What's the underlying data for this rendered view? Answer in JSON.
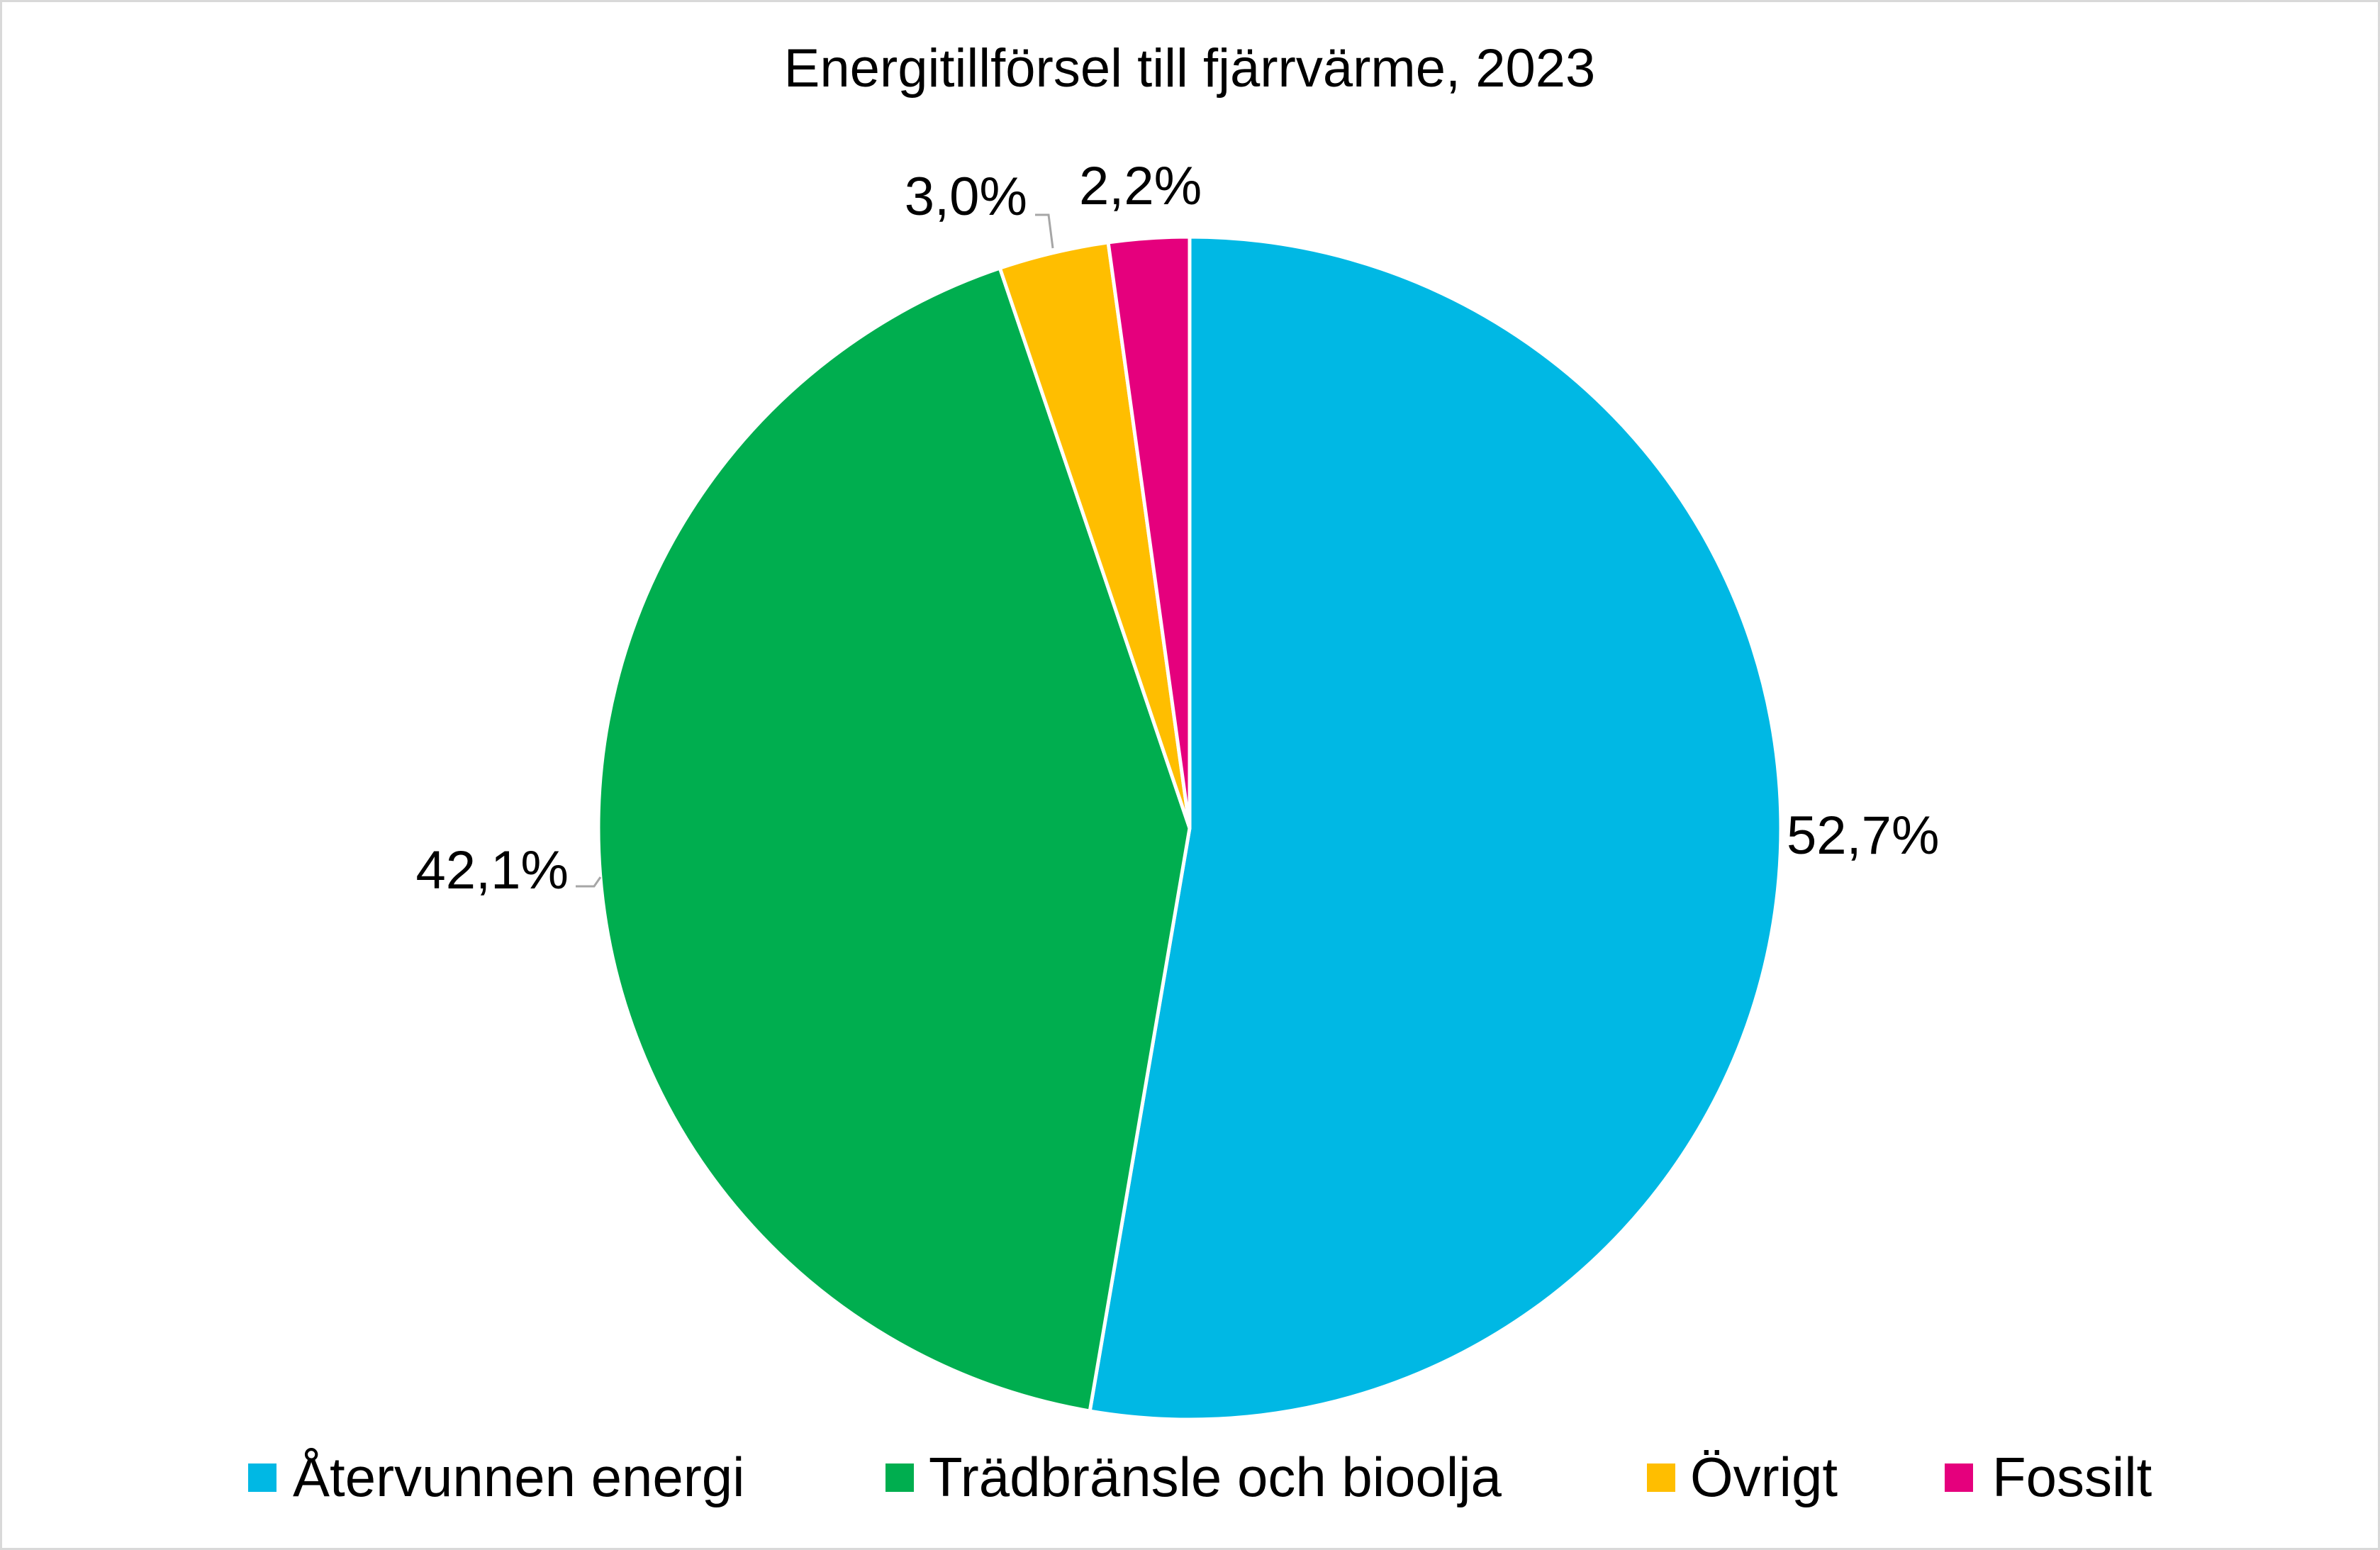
{
  "chart_data": {
    "type": "pie",
    "title": "Energitillförsel till fjärrvärme, 2023",
    "start_angle_deg": 0,
    "direction": "clockwise",
    "slices": [
      {
        "name": "Återvunnen energi",
        "value": 52.7,
        "label": "52,7%",
        "color": "#00B8E4"
      },
      {
        "name": "Trädbränsle och bioolja",
        "value": 42.1,
        "label": "42,1%",
        "color": "#00AE4F"
      },
      {
        "name": "Övrigt",
        "value": 3.0,
        "label": "3,0%",
        "color": "#FFBE00"
      },
      {
        "name": "Fossilt",
        "value": 2.2,
        "label": "2,2%",
        "color": "#E5007D"
      }
    ],
    "legend_position": "bottom"
  }
}
